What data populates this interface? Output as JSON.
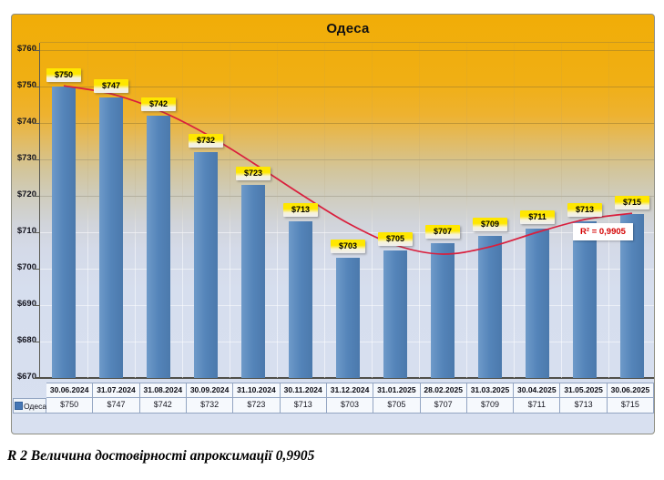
{
  "caption": "R 2 Величина достовірності апроксимації 0,9905",
  "chart_data": {
    "type": "bar",
    "title": "Одеса",
    "categories": [
      "30.06.2024",
      "31.07.2024",
      "31.08.2024",
      "30.09.2024",
      "31.10.2024",
      "30.11.2024",
      "31.12.2024",
      "31.01.2025",
      "28.02.2025",
      "31.03.2025",
      "30.04.2025",
      "31.05.2025",
      "30.06.2025"
    ],
    "series": [
      {
        "name": "Одеса",
        "values": [
          750,
          747,
          742,
          732,
          723,
          713,
          703,
          705,
          707,
          709,
          711,
          713,
          715
        ]
      }
    ],
    "value_prefix": "$",
    "ylim": [
      670,
      760
    ],
    "ytick_step": 10,
    "grid": true,
    "legend_position": "data-table-left",
    "data_labels": [
      "$750",
      "$747",
      "$742",
      "$732",
      "$723",
      "$713",
      "$703",
      "$705",
      "$707",
      "$709",
      "$711",
      "$713",
      "$715"
    ],
    "trendline": {
      "label": "R² = 0,9905",
      "color": "#d91f3d",
      "values": [
        750.2,
        748.0,
        743.5,
        737.0,
        729.0,
        720.5,
        712.5,
        706.5,
        704.0,
        706.0,
        710.0,
        713.5,
        715.2
      ]
    },
    "colors": {
      "bar": "#5484b9",
      "label_bg": "#ffe700",
      "background_top": "#f1ad07",
      "background_bottom": "#d8e0f0",
      "r2_text": "#d40000"
    }
  }
}
